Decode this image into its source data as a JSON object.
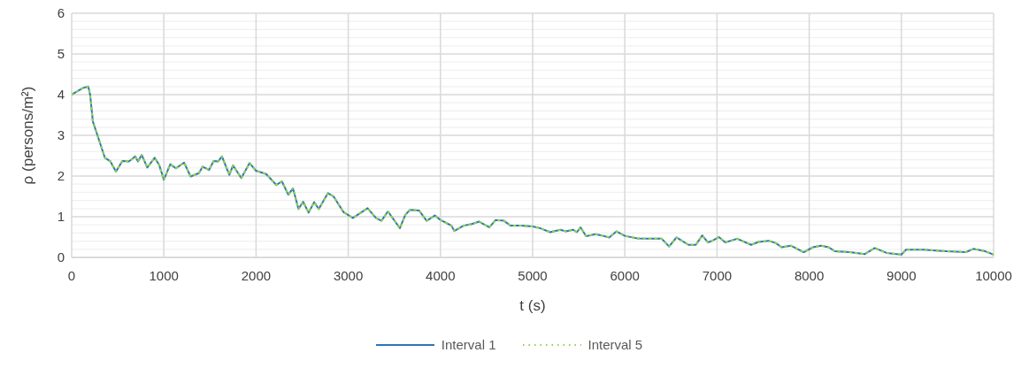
{
  "chart_data": {
    "type": "line",
    "xlabel": "t (s)",
    "ylabel": "ρ (persons/m²)",
    "x": [
      0,
      120,
      180,
      200,
      230,
      280,
      360,
      420,
      480,
      550,
      620,
      690,
      720,
      760,
      820,
      900,
      950,
      1000,
      1070,
      1130,
      1220,
      1290,
      1380,
      1420,
      1490,
      1540,
      1590,
      1630,
      1710,
      1750,
      1840,
      1930,
      2000,
      2110,
      2220,
      2280,
      2350,
      2400,
      2460,
      2510,
      2570,
      2630,
      2680,
      2780,
      2840,
      2950,
      3050,
      3130,
      3210,
      3300,
      3360,
      3430,
      3560,
      3620,
      3670,
      3770,
      3850,
      3940,
      4000,
      4120,
      4150,
      4250,
      4340,
      4420,
      4530,
      4600,
      4690,
      4760,
      4870,
      5000,
      5080,
      5190,
      5300,
      5360,
      5440,
      5480,
      5520,
      5580,
      5680,
      5750,
      5830,
      5910,
      6000,
      6130,
      6260,
      6400,
      6480,
      6560,
      6690,
      6770,
      6840,
      6900,
      6950,
      7020,
      7090,
      7220,
      7370,
      7450,
      7560,
      7640,
      7700,
      7800,
      7940,
      8040,
      8130,
      8210,
      8280,
      8440,
      8600,
      8710,
      8840,
      9000,
      9050,
      9240,
      9370,
      9490,
      9700,
      9780,
      9910,
      10000
    ],
    "series": [
      {
        "name": "Interval 1",
        "color": "#2e75b6",
        "line_style": "solid",
        "values": [
          4.0,
          4.16,
          4.2,
          4.0,
          3.34,
          3.0,
          2.45,
          2.36,
          2.11,
          2.37,
          2.36,
          2.48,
          2.36,
          2.52,
          2.21,
          2.45,
          2.27,
          1.91,
          2.29,
          2.19,
          2.33,
          1.99,
          2.07,
          2.23,
          2.15,
          2.37,
          2.36,
          2.48,
          2.03,
          2.26,
          1.95,
          2.32,
          2.13,
          2.05,
          1.78,
          1.87,
          1.54,
          1.7,
          1.19,
          1.37,
          1.1,
          1.36,
          1.19,
          1.58,
          1.5,
          1.11,
          0.97,
          1.09,
          1.21,
          0.97,
          0.9,
          1.13,
          0.72,
          1.05,
          1.17,
          1.15,
          0.9,
          1.03,
          0.92,
          0.78,
          0.65,
          0.78,
          0.82,
          0.88,
          0.74,
          0.92,
          0.9,
          0.78,
          0.78,
          0.76,
          0.72,
          0.62,
          0.68,
          0.64,
          0.68,
          0.62,
          0.74,
          0.52,
          0.57,
          0.54,
          0.49,
          0.64,
          0.53,
          0.47,
          0.46,
          0.46,
          0.27,
          0.49,
          0.31,
          0.31,
          0.54,
          0.37,
          0.41,
          0.5,
          0.37,
          0.46,
          0.31,
          0.38,
          0.41,
          0.35,
          0.25,
          0.29,
          0.13,
          0.25,
          0.29,
          0.25,
          0.15,
          0.13,
          0.08,
          0.23,
          0.11,
          0.07,
          0.19,
          0.19,
          0.17,
          0.15,
          0.13,
          0.21,
          0.15,
          0.07
        ]
      },
      {
        "name": "Interval 5",
        "color": "#92d050",
        "line_style": "dotted",
        "values": [
          4.0,
          4.16,
          4.2,
          4.0,
          3.34,
          3.0,
          2.45,
          2.36,
          2.11,
          2.37,
          2.36,
          2.48,
          2.36,
          2.52,
          2.21,
          2.45,
          2.27,
          1.91,
          2.29,
          2.19,
          2.33,
          1.99,
          2.07,
          2.23,
          2.15,
          2.37,
          2.36,
          2.48,
          2.03,
          2.26,
          1.95,
          2.32,
          2.13,
          2.05,
          1.78,
          1.87,
          1.54,
          1.7,
          1.19,
          1.37,
          1.1,
          1.36,
          1.19,
          1.58,
          1.5,
          1.11,
          0.97,
          1.09,
          1.21,
          0.97,
          0.9,
          1.13,
          0.72,
          1.05,
          1.17,
          1.15,
          0.9,
          1.03,
          0.92,
          0.78,
          0.65,
          0.78,
          0.82,
          0.88,
          0.74,
          0.92,
          0.9,
          0.78,
          0.78,
          0.76,
          0.72,
          0.62,
          0.68,
          0.64,
          0.68,
          0.62,
          0.74,
          0.52,
          0.57,
          0.54,
          0.49,
          0.64,
          0.53,
          0.47,
          0.46,
          0.46,
          0.27,
          0.49,
          0.31,
          0.31,
          0.54,
          0.37,
          0.41,
          0.5,
          0.37,
          0.46,
          0.31,
          0.38,
          0.41,
          0.35,
          0.25,
          0.29,
          0.13,
          0.25,
          0.29,
          0.25,
          0.15,
          0.13,
          0.08,
          0.23,
          0.11,
          0.07,
          0.19,
          0.19,
          0.17,
          0.15,
          0.13,
          0.21,
          0.15,
          0.07
        ]
      }
    ],
    "xlim": [
      0,
      10000
    ],
    "xticks": [
      0,
      1000,
      2000,
      3000,
      4000,
      5000,
      6000,
      7000,
      8000,
      9000,
      10000
    ],
    "ylim": [
      0,
      6
    ],
    "yticks": [
      0,
      {
        "value": 0.2,
        "label": null
      },
      {
        "value": 0.4,
        "label": null
      },
      {
        "value": 0.6,
        "label": null
      },
      {
        "value": 0.8,
        "label": null
      },
      1,
      {
        "value": 1.2,
        "label": null
      },
      {
        "value": 1.4,
        "label": null
      },
      {
        "value": 1.6,
        "label": null
      },
      {
        "value": 1.8,
        "label": null
      },
      2,
      {
        "value": 2.2,
        "label": null
      },
      {
        "value": 2.4,
        "label": null
      },
      {
        "value": 2.6,
        "label": null
      },
      {
        "value": 2.8,
        "label": null
      },
      3,
      {
        "value": 3.2,
        "label": null
      },
      {
        "value": 3.4,
        "label": null
      },
      {
        "value": 3.6,
        "label": null
      },
      {
        "value": 3.8,
        "label": null
      },
      4,
      {
        "value": 4.2,
        "label": null
      },
      {
        "value": 4.4,
        "label": null
      },
      {
        "value": 4.6,
        "label": null
      },
      {
        "value": 4.8,
        "label": null
      },
      5,
      {
        "value": 5.2,
        "label": null
      },
      {
        "value": 5.4,
        "label": null
      },
      {
        "value": 5.6,
        "label": null
      },
      {
        "value": 5.8,
        "label": null
      },
      6
    ],
    "grid": true,
    "legend": "bottom",
    "marker": "none"
  }
}
